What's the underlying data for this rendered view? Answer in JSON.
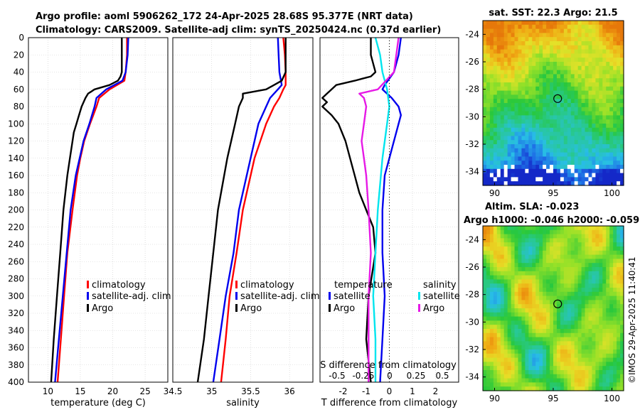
{
  "header": {
    "line1": "Argo profile: aoml 5906262_172 24-Apr-2025 28.68S 95.377E (NRT data)",
    "line2": "Climatology: CARS2009. Satellite-adj clim: synTS_20250424.nc (0.37d earlier)"
  },
  "colors": {
    "red": "#ff0000",
    "blue": "#0000ee",
    "black": "#000000",
    "cyan": "#00e5ee",
    "magenta": "#e619e6",
    "grid": "#cccccc"
  },
  "depth_ticks": [
    "0",
    "20",
    "40",
    "60",
    "80",
    "100",
    "120",
    "140",
    "160",
    "180",
    "200",
    "220",
    "240",
    "260",
    "280",
    "300",
    "320",
    "340",
    "360",
    "380",
    "400"
  ],
  "legend": {
    "climatology": "climatology",
    "satellite_adj": "satellite-adj. clim",
    "argo": "Argo",
    "temperature": "temperature",
    "salinity": "salinity",
    "satellite": "satellite"
  },
  "copyright": "©IMOS 29-Apr-2025 11:40:41",
  "chart_data": [
    {
      "type": "line",
      "name": "temperature-profile",
      "xlabel": "temperature (deg C)",
      "ylabel": "depth",
      "xlim": [
        7,
        28.5
      ],
      "ylim": [
        0,
        400
      ],
      "x_ticks": [
        "10",
        "15",
        "20",
        "25"
      ],
      "grid": true,
      "series": [
        {
          "name": "climatology",
          "color": "red",
          "depth": [
            0,
            20,
            40,
            50,
            60,
            70,
            80,
            100,
            120,
            140,
            160,
            200,
            250,
            300,
            350,
            400
          ],
          "values": [
            22.2,
            22.2,
            22.0,
            21.8,
            19.5,
            17.9,
            17.5,
            16.5,
            15.6,
            15.0,
            14.5,
            13.8,
            13.0,
            12.5,
            12.0,
            11.5
          ]
        },
        {
          "name": "satellite-adj. clim",
          "color": "blue",
          "depth": [
            0,
            20,
            40,
            50,
            60,
            70,
            80,
            100,
            120,
            140,
            160,
            200,
            250,
            300,
            350,
            400
          ],
          "values": [
            22.4,
            22.3,
            22.0,
            21.5,
            19.0,
            17.5,
            17.2,
            16.4,
            15.5,
            14.9,
            14.3,
            13.5,
            12.9,
            12.3,
            11.7,
            11.1
          ]
        },
        {
          "name": "Argo",
          "color": "black",
          "depth": [
            0,
            20,
            40,
            45,
            50,
            55,
            60,
            65,
            70,
            80,
            90,
            100,
            110,
            120,
            140,
            160,
            200,
            250,
            300,
            350,
            400
          ],
          "values": [
            21.4,
            21.4,
            21.4,
            21.2,
            20.8,
            19.5,
            17.2,
            16.2,
            15.8,
            15.2,
            14.8,
            14.4,
            14.0,
            13.8,
            13.4,
            13.0,
            12.4,
            11.9,
            11.4,
            10.9,
            10.5
          ]
        }
      ]
    },
    {
      "type": "line",
      "name": "salinity-profile",
      "xlabel": "salinity",
      "ylabel": "depth",
      "xlim": [
        34.5,
        36.3
      ],
      "ylim": [
        0,
        400
      ],
      "x_ticks": [
        "34.5",
        "35",
        "35.5",
        "36"
      ],
      "grid": true,
      "series": [
        {
          "name": "climatology",
          "color": "red",
          "depth": [
            0,
            20,
            40,
            55,
            60,
            70,
            80,
            100,
            140,
            200,
            250,
            300,
            350,
            400
          ],
          "values": [
            35.92,
            35.94,
            35.95,
            35.95,
            35.92,
            35.87,
            35.8,
            35.7,
            35.55,
            35.4,
            35.32,
            35.23,
            35.18,
            35.12
          ]
        },
        {
          "name": "satellite-adj. clim",
          "color": "blue",
          "depth": [
            0,
            20,
            40,
            55,
            60,
            70,
            80,
            100,
            140,
            200,
            250,
            300,
            350,
            400
          ],
          "values": [
            35.85,
            35.86,
            35.87,
            35.9,
            35.85,
            35.75,
            35.7,
            35.6,
            35.5,
            35.35,
            35.28,
            35.18,
            35.1,
            35.02
          ]
        },
        {
          "name": "Argo",
          "color": "black",
          "depth": [
            0,
            20,
            40,
            50,
            60,
            65,
            70,
            80,
            100,
            140,
            200,
            250,
            300,
            350,
            400
          ],
          "values": [
            35.95,
            35.95,
            35.95,
            35.9,
            35.7,
            35.4,
            35.4,
            35.35,
            35.3,
            35.2,
            35.08,
            35.02,
            34.96,
            34.9,
            34.82
          ]
        }
      ]
    },
    {
      "type": "line",
      "name": "difference-profile",
      "xlabel": "T difference from climatology",
      "xlabel_top": "S difference from climatology",
      "ylabel": "depth",
      "xlim": [
        -3,
        3
      ],
      "ylim": [
        0,
        400
      ],
      "x_ticks": [
        "-2",
        "-1",
        "0",
        "1",
        "2"
      ],
      "x_ticks_top": [
        "-0.5",
        "-0.25",
        "0",
        "0.25",
        "0.5"
      ],
      "grid": true,
      "series": [
        {
          "name": "temperature satellite",
          "color": "blue",
          "depth": [
            0,
            20,
            40,
            55,
            60,
            70,
            80,
            90,
            100,
            120,
            140,
            160,
            200,
            250,
            300,
            350,
            400
          ],
          "values": [
            0.5,
            0.4,
            0.2,
            -0.2,
            -0.3,
            0.1,
            0.4,
            0.5,
            0.4,
            0.2,
            0.0,
            -0.2,
            -0.3,
            -0.3,
            -0.2,
            -0.3,
            -0.4
          ]
        },
        {
          "name": "temperature Argo",
          "color": "black",
          "depth": [
            0,
            20,
            40,
            45,
            50,
            55,
            60,
            65,
            70,
            75,
            80,
            90,
            100,
            120,
            140,
            160,
            180,
            200,
            220,
            250,
            300,
            350,
            400
          ],
          "values": [
            -0.8,
            -0.8,
            -0.6,
            -0.8,
            -1.5,
            -2.3,
            -2.5,
            -2.7,
            -2.9,
            -2.7,
            -2.9,
            -2.5,
            -2.2,
            -1.9,
            -1.7,
            -1.5,
            -1.3,
            -1.0,
            -0.7,
            -0.6,
            -0.9,
            -1.0,
            -0.8
          ]
        },
        {
          "name": "salinity satellite",
          "color": "cyan",
          "depth": [
            0,
            20,
            40,
            60,
            80,
            100,
            140,
            200,
            250,
            300,
            350,
            400
          ],
          "values": [
            -0.6,
            -0.4,
            -0.3,
            -0.1,
            0.0,
            -0.1,
            -0.3,
            -0.5,
            -0.6,
            -0.7,
            -0.6,
            -0.6
          ]
        },
        {
          "name": "salinity Argo",
          "color": "magenta",
          "depth": [
            0,
            20,
            40,
            60,
            65,
            70,
            80,
            100,
            120,
            140,
            160,
            200,
            250,
            300,
            350,
            400
          ],
          "values": [
            0.4,
            0.3,
            0.2,
            -0.5,
            -1.3,
            -1.1,
            -1.0,
            -1.1,
            -1.2,
            -1.1,
            -1.0,
            -0.9,
            -0.8,
            -0.9,
            -0.9,
            -0.9
          ]
        }
      ]
    },
    {
      "type": "heatmap",
      "name": "sat-sst-map",
      "title": "sat. SST: 22.3 Argo: 21.5",
      "x_ticks": [
        "90",
        "95",
        "100"
      ],
      "y_ticks": [
        "-24",
        "-26",
        "-28",
        "-30",
        "-32",
        "-34"
      ],
      "xlim": [
        89,
        101
      ],
      "ylim": [
        -35,
        -23
      ],
      "marker": {
        "lon": 95.377,
        "lat": -28.68
      }
    },
    {
      "type": "heatmap",
      "name": "altim-sla-map",
      "title": "Altim. SLA: -0.023",
      "subtitle": "Argo h1000: -0.046 h2000: -0.059",
      "x_ticks": [
        "90",
        "95",
        "100"
      ],
      "y_ticks": [
        "-24",
        "-26",
        "-28",
        "-30",
        "-32",
        "-34"
      ],
      "xlim": [
        89,
        101
      ],
      "ylim": [
        -35,
        -23
      ],
      "marker": {
        "lon": 95.377,
        "lat": -28.68
      }
    }
  ]
}
